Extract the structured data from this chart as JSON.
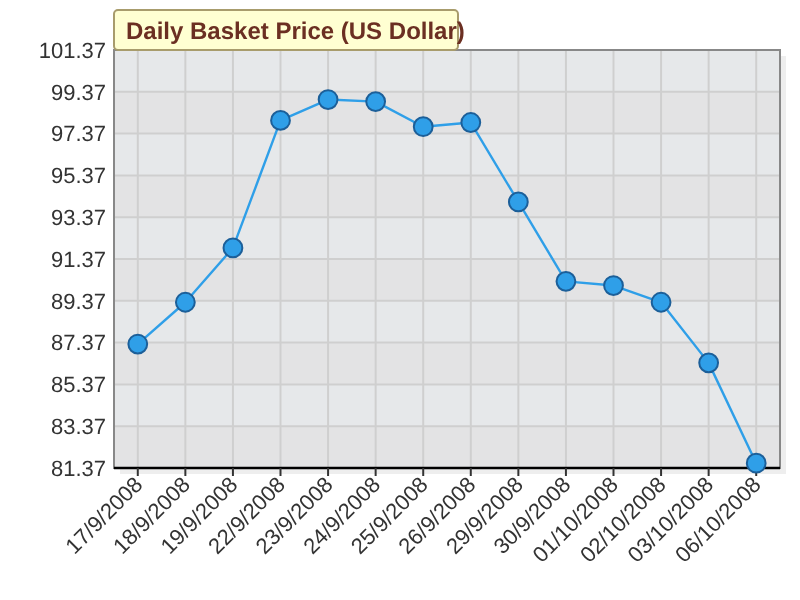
{
  "chart_data": {
    "type": "line",
    "title": "Daily Basket Price (US Dollar)",
    "categories": [
      "17/9/2008",
      "18/9/2008",
      "19/9/2008",
      "22/9/2008",
      "23/9/2008",
      "24/9/2008",
      "25/9/2008",
      "26/9/2008",
      "29/9/2008",
      "30/9/2008",
      "01/10/2008",
      "02/10/2008",
      "03/10/2008",
      "06/10/2008"
    ],
    "series": [
      {
        "color": "#2f9fe8",
        "values": [
          87.3,
          89.3,
          91.9,
          98.0,
          99.0,
          98.9,
          97.7,
          97.9,
          94.1,
          90.3,
          90.1,
          89.3,
          86.4,
          81.6
        ]
      }
    ],
    "ylim": [
      81.37,
      101.37
    ],
    "yticks": [
      81.37,
      83.37,
      85.37,
      87.37,
      89.37,
      91.37,
      93.37,
      95.37,
      97.37,
      99.37,
      101.37
    ],
    "grid": true,
    "marker": "circle"
  }
}
